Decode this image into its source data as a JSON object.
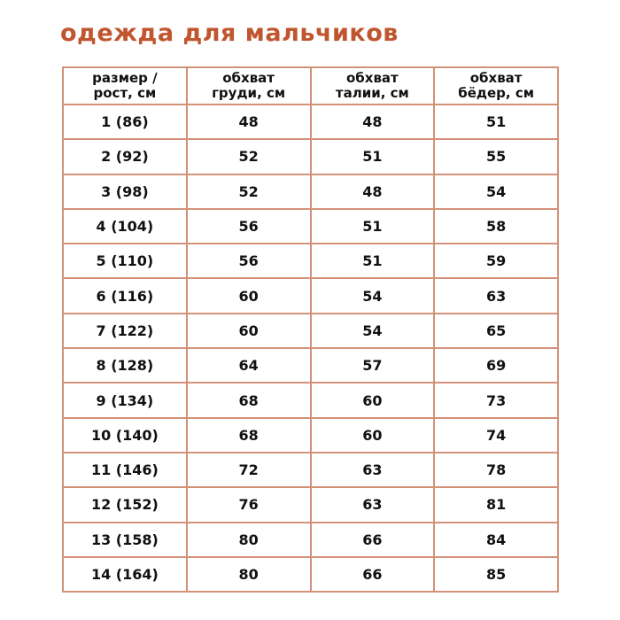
{
  "title": "одежда для мальчиков",
  "colors": {
    "title": "#c0552e",
    "border": "#d39178"
  },
  "table": {
    "headers": [
      [
        "размер /",
        "рост, см"
      ],
      [
        "обхват",
        "груди, см"
      ],
      [
        "обхват",
        "талии, см"
      ],
      [
        "обхват",
        "бёдер, см"
      ]
    ],
    "rows": [
      [
        "1 (86)",
        "48",
        "48",
        "51"
      ],
      [
        "2 (92)",
        "52",
        "51",
        "55"
      ],
      [
        "3 (98)",
        "52",
        "48",
        "54"
      ],
      [
        "4 (104)",
        "56",
        "51",
        "58"
      ],
      [
        "5 (110)",
        "56",
        "51",
        "59"
      ],
      [
        "6 (116)",
        "60",
        "54",
        "63"
      ],
      [
        "7 (122)",
        "60",
        "54",
        "65"
      ],
      [
        "8 (128)",
        "64",
        "57",
        "69"
      ],
      [
        "9 (134)",
        "68",
        "60",
        "73"
      ],
      [
        "10 (140)",
        "68",
        "60",
        "74"
      ],
      [
        "11 (146)",
        "72",
        "63",
        "78"
      ],
      [
        "12 (152)",
        "76",
        "63",
        "81"
      ],
      [
        "13 (158)",
        "80",
        "66",
        "84"
      ],
      [
        "14 (164)",
        "80",
        "66",
        "85"
      ]
    ]
  }
}
